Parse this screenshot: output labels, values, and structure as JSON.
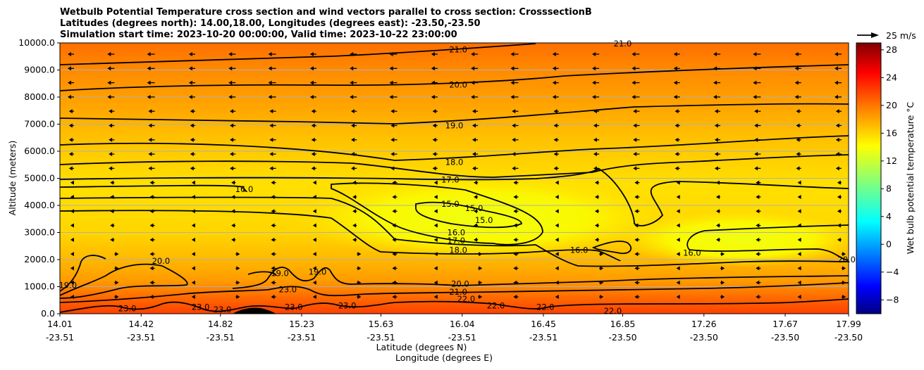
{
  "chart_data": {
    "type": "heatmap",
    "title": [
      "Wetbulb Potential Temperature cross section and wind vectors parallel to cross section: CrosssectionB",
      "Latitudes (degrees north): 14.00,18.00, Longitudes (degrees east): -23.50,-23.50",
      "Simulation start time: 2023-10-20 00:00:00, Valid time: 2023-10-22 23:00:00"
    ],
    "xlabel": [
      "Latitude (degrees N)",
      "Longitude (degrees E)"
    ],
    "ylabel": "Altitude (meters)",
    "colorbar_label": "Wet bulb potential temperature $^\\circ$C",
    "colorbar_label_text": "Wet bulb potential temperature °C",
    "quiver_key": "25 m/s",
    "ylim": [
      0,
      10000
    ],
    "yticks": [
      "0.0",
      "1000.0",
      "2000.0",
      "3000.0",
      "4000.0",
      "5000.0",
      "6000.0",
      "7000.0",
      "8000.0",
      "9000.0",
      "10000.0"
    ],
    "xticks": [
      {
        "lat": "14.01",
        "lon": "-23.51"
      },
      {
        "lat": "14.42",
        "lon": "-23.51"
      },
      {
        "lat": "14.82",
        "lon": "-23.51"
      },
      {
        "lat": "15.23",
        "lon": "-23.51"
      },
      {
        "lat": "15.63",
        "lon": "-23.51"
      },
      {
        "lat": "16.04",
        "lon": "-23.51"
      },
      {
        "lat": "16.45",
        "lon": "-23.51"
      },
      {
        "lat": "16.85",
        "lon": "-23.50"
      },
      {
        "lat": "17.26",
        "lon": "-23.50"
      },
      {
        "lat": "17.67",
        "lon": "-23.50"
      },
      {
        "lat": "17.99",
        "lon": "-23.50"
      }
    ],
    "colorbar_ticks": [
      "28",
      "24",
      "20",
      "16",
      "12",
      "8",
      "4",
      "0",
      "−4",
      "−8"
    ],
    "colorbar_range": [
      -10,
      29
    ],
    "colorbar_colors": [
      "#00007f",
      "#0000ff",
      "#007fff",
      "#00ffff",
      "#7fff7f",
      "#ffff00",
      "#ff7f00",
      "#ff0000",
      "#7f0000"
    ],
    "grid": "horizontal",
    "contours": [
      {
        "label": "21.0",
        "lat": 16.02,
        "alt": 9750
      },
      {
        "label": "20.0",
        "lat": 16.02,
        "alt": 8450
      },
      {
        "label": "19.0",
        "lat": 16.0,
        "alt": 6950
      },
      {
        "label": "18.0",
        "lat": 16.0,
        "alt": 5600
      },
      {
        "label": "17.0",
        "lat": 15.98,
        "alt": 4950
      },
      {
        "label": "16.0",
        "lat": 14.94,
        "alt": 4600
      },
      {
        "label": "15.0",
        "lat": 15.98,
        "alt": 4050
      },
      {
        "label": "15.0",
        "lat": 16.1,
        "alt": 3900
      },
      {
        "label": "15.0",
        "lat": 16.15,
        "alt": 3450
      },
      {
        "label": "16.0",
        "lat": 16.01,
        "alt": 3000
      },
      {
        "label": "17.0",
        "lat": 16.01,
        "alt": 2700
      },
      {
        "label": "18.0",
        "lat": 16.02,
        "alt": 2350
      },
      {
        "label": "16.0",
        "lat": 16.63,
        "alt": 2350
      },
      {
        "label": "16.0",
        "lat": 17.2,
        "alt": 2250
      },
      {
        "label": "20.0",
        "lat": 14.52,
        "alt": 1950
      },
      {
        "label": "19.0",
        "lat": 15.12,
        "alt": 1500
      },
      {
        "label": "19.0",
        "lat": 15.31,
        "alt": 1550
      },
      {
        "label": "20.0",
        "lat": 16.03,
        "alt": 1100
      },
      {
        "label": "23.0",
        "lat": 15.16,
        "alt": 900
      },
      {
        "label": "21.0",
        "lat": 16.02,
        "alt": 800
      },
      {
        "label": "22.0",
        "lat": 16.06,
        "alt": 550
      },
      {
        "label": "23.0",
        "lat": 14.35,
        "alt": 200
      },
      {
        "label": "23.0",
        "lat": 14.72,
        "alt": 250
      },
      {
        "label": "23.0",
        "lat": 14.83,
        "alt": 150
      },
      {
        "label": "23.0",
        "lat": 15.19,
        "alt": 250
      },
      {
        "label": "23.0",
        "lat": 15.46,
        "alt": 300
      },
      {
        "label": "22.0",
        "lat": 16.21,
        "alt": 300
      },
      {
        "label": "22.0",
        "lat": 16.46,
        "alt": 250
      },
      {
        "label": "22.0",
        "lat": 16.8,
        "alt": 100
      },
      {
        "label": "21.0",
        "lat": 16.85,
        "alt": 9980
      },
      {
        "label": "19.0",
        "lat": 14.05,
        "alt": 1050
      },
      {
        "label": "20.0",
        "lat": 17.98,
        "alt": 2000
      }
    ]
  }
}
